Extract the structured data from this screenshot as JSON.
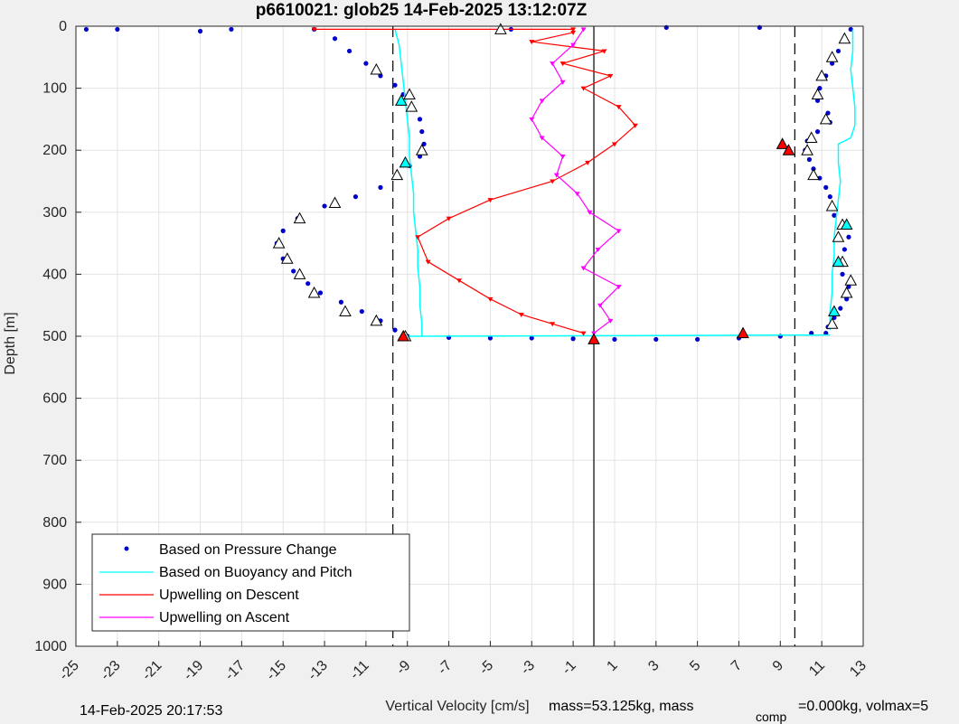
{
  "title": "p6610021: glob25 14-Feb-2025 13:12:07Z",
  "footer": {
    "date": "14-Feb-2025 20:17:53",
    "mass_prefix": "mass=53.125kg, mass",
    "mass_sub": "comp",
    "mass_suffix": "=0.000kg, volmax=5"
  },
  "chart_data": {
    "type": "scatter",
    "title": "p6610021: glob25 14-Feb-2025 13:12:07Z",
    "xlabel": "Vertical Velocity [cm/s]",
    "ylabel": "Depth [m]",
    "xlim": [
      -25,
      13
    ],
    "ylim": [
      0,
      1000
    ],
    "y_reversed": true,
    "grid": true,
    "x_ticks": [
      "-25",
      "-23",
      "-21",
      "-19",
      "-17",
      "-15",
      "-13",
      "-11",
      "-9",
      "-7",
      "-5",
      "-3",
      "-1",
      "1",
      "3",
      "5",
      "7",
      "9",
      "11",
      "13"
    ],
    "y_ticks": [
      "0",
      "100",
      "200",
      "300",
      "400",
      "500",
      "600",
      "700",
      "800",
      "900",
      "1000"
    ],
    "legend_position": "bottom-left",
    "reference_lines": {
      "dashed_x": [
        -9.7,
        9.7
      ],
      "solid_x": [
        0
      ]
    },
    "colors": {
      "pressure": "#0000cd",
      "buoyancy": "#00ffff",
      "descent": "#ff0000",
      "ascent": "#ff00ff"
    },
    "series": [
      {
        "name": "Based on Pressure Change",
        "style": "dots",
        "profiles": [
          [
            [
              -13.5,
              5
            ],
            [
              -12.5,
              20
            ],
            [
              -11.8,
              40
            ],
            [
              -11,
              60
            ],
            [
              -10.3,
              80
            ],
            [
              -9.6,
              95
            ],
            [
              -9.2,
              110
            ],
            [
              -8.8,
              130
            ],
            [
              -8.4,
              150
            ],
            [
              -8.3,
              170
            ],
            [
              -8.2,
              190
            ],
            [
              -8.4,
              210
            ],
            [
              -8.9,
              225
            ],
            [
              -9.5,
              240
            ],
            [
              -10.3,
              260
            ],
            [
              -11.5,
              275
            ],
            [
              -13,
              290
            ],
            [
              -14.3,
              310
            ],
            [
              -15,
              330
            ],
            [
              -15.3,
              350
            ],
            [
              -15,
              375
            ],
            [
              -14.5,
              395
            ],
            [
              -13.8,
              415
            ],
            [
              -13.2,
              430
            ],
            [
              -12.2,
              445
            ],
            [
              -11.2,
              460
            ],
            [
              -10.3,
              475
            ],
            [
              -9.6,
              490
            ],
            [
              -9.2,
              500
            ]
          ],
          [
            [
              12.4,
              5
            ],
            [
              12.1,
              20
            ],
            [
              11.8,
              40
            ],
            [
              11.5,
              60
            ],
            [
              11.2,
              80
            ],
            [
              10.9,
              100
            ],
            [
              10.8,
              120
            ],
            [
              11.3,
              140
            ],
            [
              11.4,
              155
            ],
            [
              10.8,
              170
            ],
            [
              10.3,
              185
            ],
            [
              10.2,
              200
            ],
            [
              10.4,
              215
            ],
            [
              10.6,
              230
            ],
            [
              10.9,
              245
            ],
            [
              11.2,
              260
            ],
            [
              11.4,
              275
            ],
            [
              11.5,
              290
            ],
            [
              11.6,
              305
            ],
            [
              12,
              320
            ],
            [
              12.3,
              340
            ],
            [
              12.1,
              360
            ],
            [
              11.8,
              380
            ],
            [
              12,
              400
            ],
            [
              12.3,
              420
            ],
            [
              12.2,
              440
            ],
            [
              11.9,
              455
            ],
            [
              11.6,
              470
            ],
            [
              11.3,
              485
            ],
            [
              11.2,
              495
            ]
          ],
          [
            [
              -24.5,
              5
            ],
            [
              -23,
              5
            ],
            [
              -19,
              8
            ],
            [
              -17.5,
              5
            ],
            [
              -4,
              5
            ],
            [
              3.5,
              2
            ],
            [
              8,
              2
            ]
          ],
          [
            [
              -9,
              500
            ],
            [
              -7,
              502
            ],
            [
              -5,
              503
            ],
            [
              -3,
              503
            ],
            [
              -1,
              504
            ],
            [
              1,
              505
            ],
            [
              3,
              505
            ],
            [
              5,
              505
            ],
            [
              7,
              503
            ],
            [
              9,
              500
            ],
            [
              10.5,
              495
            ]
          ]
        ]
      },
      {
        "name": "Based on Buoyancy and Pitch",
        "style": "line",
        "profiles": [
          [
            [
              -9.6,
              5
            ],
            [
              -9.4,
              30
            ],
            [
              -9.3,
              60
            ],
            [
              -9.2,
              90
            ],
            [
              -9.1,
              120
            ],
            [
              -9,
              150
            ],
            [
              -8.9,
              180
            ],
            [
              -8.9,
              210
            ],
            [
              -8.8,
              240
            ],
            [
              -8.7,
              270
            ],
            [
              -8.7,
              300
            ],
            [
              -8.6,
              330
            ],
            [
              -8.5,
              360
            ],
            [
              -8.5,
              390
            ],
            [
              -8.4,
              420
            ],
            [
              -8.4,
              450
            ],
            [
              -8.3,
              480
            ],
            [
              -8.3,
              500
            ]
          ],
          [
            [
              12.5,
              5
            ],
            [
              12.5,
              40
            ],
            [
              12.4,
              70
            ],
            [
              12.5,
              100
            ],
            [
              12.6,
              130
            ],
            [
              12.6,
              160
            ],
            [
              12.4,
              180
            ],
            [
              11.8,
              190
            ],
            [
              11.8,
              220
            ],
            [
              11.9,
              250
            ],
            [
              11.8,
              280
            ],
            [
              11.7,
              310
            ],
            [
              11.6,
              340
            ],
            [
              11.6,
              370
            ],
            [
              11.5,
              400
            ],
            [
              11.5,
              430
            ],
            [
              11.4,
              460
            ],
            [
              11.4,
              490
            ]
          ],
          [
            [
              -9,
              500
            ],
            [
              11.4,
              498
            ]
          ]
        ]
      },
      {
        "name": "Upwelling on Descent",
        "style": "line-markers",
        "profiles": [
          [
            [
              -13.5,
              5
            ],
            [
              -4.5,
              5
            ],
            [
              -1,
              5
            ]
          ],
          [
            [
              -1,
              10
            ],
            [
              -3,
              25
            ],
            [
              0.5,
              40
            ],
            [
              -1.5,
              60
            ],
            [
              0.8,
              80
            ],
            [
              -0.5,
              100
            ],
            [
              1.2,
              130
            ],
            [
              2,
              160
            ],
            [
              1,
              190
            ],
            [
              -0.3,
              220
            ],
            [
              -2,
              250
            ],
            [
              -5,
              280
            ],
            [
              -7,
              310
            ],
            [
              -8.5,
              340
            ],
            [
              -8,
              380
            ],
            [
              -6.5,
              410
            ],
            [
              -5,
              440
            ],
            [
              -3.5,
              465
            ],
            [
              -2,
              480
            ],
            [
              -0.5,
              495
            ]
          ]
        ]
      },
      {
        "name": "Upwelling on Ascent",
        "style": "line-markers",
        "profiles": [
          [
            [
              -0.5,
              5
            ],
            [
              -1,
              30
            ],
            [
              -2,
              60
            ],
            [
              -1.5,
              90
            ],
            [
              -2.5,
              120
            ],
            [
              -3,
              150
            ],
            [
              -2.5,
              180
            ],
            [
              -1.5,
              210
            ],
            [
              -1.8,
              240
            ],
            [
              -0.8,
              270
            ],
            [
              -0.2,
              300
            ],
            [
              1.2,
              330
            ],
            [
              0.2,
              360
            ],
            [
              -0.5,
              390
            ],
            [
              1.2,
              420
            ],
            [
              0.3,
              450
            ],
            [
              0.8,
              475
            ],
            [
              0,
              495
            ]
          ]
        ]
      }
    ],
    "triangle_markers": {
      "white": [
        [
          -4.5,
          5
        ],
        [
          -10.5,
          70
        ],
        [
          -8.9,
          110
        ],
        [
          -8.8,
          130
        ],
        [
          -8.3,
          200
        ],
        [
          -9.5,
          240
        ],
        [
          -12.5,
          285
        ],
        [
          -14.2,
          310
        ],
        [
          -15.2,
          350
        ],
        [
          -14.8,
          375
        ],
        [
          -14.2,
          400
        ],
        [
          -13.5,
          430
        ],
        [
          -12,
          460
        ],
        [
          -10.5,
          475
        ],
        [
          -9.1,
          500
        ],
        [
          12.1,
          20
        ],
        [
          11.5,
          50
        ],
        [
          11,
          80
        ],
        [
          10.8,
          110
        ],
        [
          11.2,
          150
        ],
        [
          10.5,
          180
        ],
        [
          10.3,
          200
        ],
        [
          10.6,
          240
        ],
        [
          11.5,
          290
        ],
        [
          12,
          320
        ],
        [
          11.8,
          340
        ],
        [
          12,
          380
        ],
        [
          12.4,
          410
        ],
        [
          12.2,
          430
        ],
        [
          11.5,
          480
        ]
      ],
      "cyan": [
        [
          -9.3,
          120
        ],
        [
          -9.1,
          220
        ],
        [
          12.2,
          320
        ],
        [
          11.8,
          380
        ],
        [
          11.6,
          460
        ]
      ],
      "red": [
        [
          -9.2,
          500
        ],
        [
          0,
          505
        ],
        [
          7.2,
          495
        ],
        [
          9.1,
          190
        ],
        [
          9.4,
          200
        ]
      ]
    }
  }
}
